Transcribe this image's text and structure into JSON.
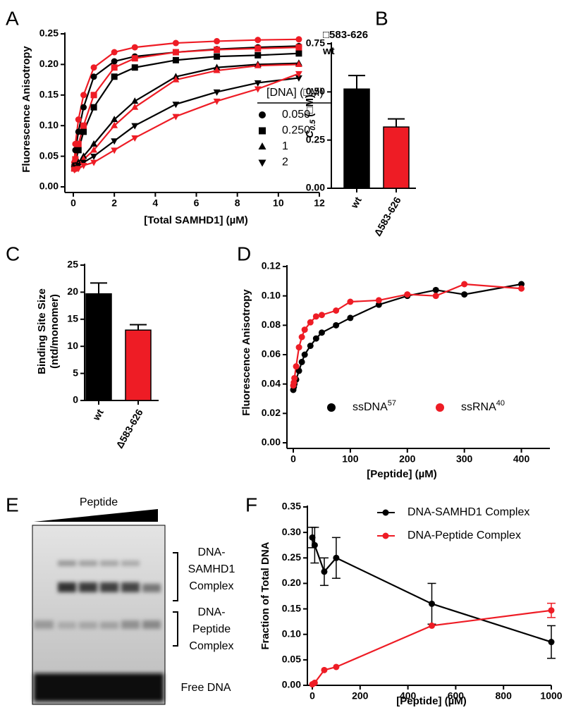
{
  "chart_data": [
    {
      "type": "line",
      "label": "A",
      "ylabel": "Fluorescence Anisotropy",
      "xlabel": "[Total SAMHD1] (µM)",
      "xlim": [
        0,
        12
      ],
      "xticks": [
        0,
        2,
        4,
        6,
        8,
        10,
        12
      ],
      "ylim": [
        0,
        0.25
      ],
      "yticks": [
        {
          "value": 0,
          "label": "0.00"
        },
        0.05,
        {
          "value": 0.1,
          "label": "0.10"
        },
        0.15,
        {
          "value": 0.2,
          "label": "0.20"
        },
        0.25
      ],
      "x": [
        0.05,
        0.1,
        0.25,
        0.5,
        1,
        2,
        3,
        5,
        7,
        9,
        11
      ],
      "series": [
        {
          "color": "#000000",
          "marker": "circle",
          "values": [
            0.035,
            0.06,
            0.09,
            0.13,
            0.18,
            0.205,
            0.213,
            0.22,
            0.225,
            0.228,
            0.23
          ]
        },
        {
          "color": "#ee1c25",
          "marker": "circle",
          "values": [
            0.04,
            0.07,
            0.11,
            0.15,
            0.195,
            0.22,
            0.228,
            0.235,
            0.238,
            0.24,
            0.241
          ]
        },
        {
          "color": "#000000",
          "marker": "square",
          "values": [
            0.03,
            0.04,
            0.06,
            0.09,
            0.13,
            0.18,
            0.195,
            0.207,
            0.213,
            0.215,
            0.218
          ]
        },
        {
          "color": "#ee1c25",
          "marker": "square",
          "values": [
            0.03,
            0.045,
            0.07,
            0.1,
            0.15,
            0.195,
            0.21,
            0.22,
            0.224,
            0.226,
            0.228
          ]
        },
        {
          "color": "#000000",
          "marker": "triangle",
          "values": [
            0.03,
            0.035,
            0.04,
            0.05,
            0.07,
            0.11,
            0.14,
            0.18,
            0.195,
            0.2,
            0.202
          ]
        },
        {
          "color": "#ee1c25",
          "marker": "triangle",
          "values": [
            0.03,
            0.033,
            0.035,
            0.045,
            0.06,
            0.1,
            0.13,
            0.175,
            0.19,
            0.198,
            0.2
          ]
        },
        {
          "color": "#000000",
          "marker": "triangle-down",
          "values": [
            0.03,
            0.032,
            0.035,
            0.04,
            0.05,
            0.075,
            0.1,
            0.135,
            0.155,
            0.17,
            0.178
          ]
        },
        {
          "color": "#ee1c25",
          "marker": "triangle-down",
          "values": [
            0.028,
            0.029,
            0.03,
            0.035,
            0.04,
            0.06,
            0.08,
            0.115,
            0.14,
            0.16,
            0.185
          ]
        }
      ],
      "line_labels": [
        {
          "text": "□583-626",
          "color": "#ee1c25"
        },
        {
          "text": "wt",
          "color": "#000000"
        }
      ],
      "legend_title": "[DNA] (□M)",
      "legend": [
        {
          "label": "0.050",
          "marker": "circle"
        },
        {
          "label": "0.250",
          "marker": "square"
        },
        {
          "label": "1",
          "marker": "triangle"
        },
        {
          "label": "2",
          "marker": "triangle-down"
        }
      ]
    },
    {
      "type": "bar",
      "label": "B",
      "ylabel_italic": "C",
      "ylabel_sub": "0.5",
      "ylabel_unit": "(□M)",
      "categories": [
        "wt",
        "Δ583-626"
      ],
      "values": [
        0.515,
        0.318
      ],
      "errors": [
        0.07,
        0.042
      ],
      "colors": [
        "#000000",
        "#ee1c25"
      ],
      "ylim": [
        0,
        0.75
      ],
      "yticks": [
        {
          "value": 0,
          "label": "0.00"
        },
        0.25,
        {
          "value": 0.5,
          "label": "0.50"
        },
        0.75
      ]
    },
    {
      "type": "bar",
      "label": "C",
      "ylabel": [
        "Binding Site Size",
        "(ntd/monomer)"
      ],
      "categories": [
        "wt",
        "Δ583-626"
      ],
      "values": [
        19.7,
        13.0
      ],
      "errors": [
        2.0,
        1.0
      ],
      "colors": [
        "#000000",
        "#ee1c25"
      ],
      "ylim": [
        0,
        25
      ],
      "yticks": [
        0,
        5,
        10,
        15,
        20,
        25
      ]
    },
    {
      "type": "line",
      "label": "D",
      "ylabel": "Fluorescence Anisotropy",
      "xlabel": "[Peptide] (µM)",
      "xlim": [
        0,
        450
      ],
      "xticks": [
        0,
        100,
        200,
        300,
        400
      ],
      "ylim": [
        0,
        0.12
      ],
      "yticks": [
        {
          "value": 0,
          "label": "0.00"
        },
        0.02,
        0.04,
        0.06,
        0.08,
        {
          "value": 0.1,
          "label": "0.10"
        },
        0.12
      ],
      "x": [
        0,
        1,
        2,
        5,
        10,
        15,
        20,
        30,
        40,
        50,
        75,
        100,
        150,
        200,
        250,
        300,
        400
      ],
      "series": [
        {
          "name": "ssDNA",
          "name_sup": "57",
          "color": "#000000",
          "marker": "circle",
          "values": [
            0.036,
            0.038,
            0.04,
            0.043,
            0.049,
            0.055,
            0.06,
            0.066,
            0.071,
            0.075,
            0.08,
            0.085,
            0.094,
            0.1,
            0.104,
            0.101,
            0.108
          ]
        },
        {
          "name": "ssRNA",
          "name_sup": "40",
          "color": "#ee1c25",
          "marker": "circle",
          "values": [
            0.039,
            0.041,
            0.044,
            0.052,
            0.065,
            0.072,
            0.077,
            0.082,
            0.086,
            0.087,
            0.09,
            0.096,
            0.097,
            0.101,
            0.1,
            0.108,
            0.105
          ]
        }
      ]
    },
    {
      "type": "errorline",
      "label": "F",
      "ylabel": "Fraction of Total DNA",
      "xlabel": "[Peptide] (µM)",
      "xlim": [
        0,
        1000
      ],
      "xticks": [
        0,
        200,
        400,
        600,
        800,
        1000
      ],
      "ylim": [
        0,
        0.35
      ],
      "yticks": [
        {
          "value": 0,
          "label": "0.00"
        },
        0.05,
        {
          "value": 0.1,
          "label": "0.10"
        },
        0.15,
        {
          "value": 0.2,
          "label": "0.20"
        },
        0.25,
        {
          "value": 0.3,
          "label": "0.30"
        },
        0.35
      ],
      "x": [
        0,
        10,
        50,
        100,
        500,
        1000
      ],
      "series": [
        {
          "name": "DNA-SAMHD1 Complex",
          "color": "#000000",
          "marker": "circle",
          "values": [
            0.29,
            0.275,
            0.223,
            0.25,
            0.16,
            0.085
          ],
          "errors": [
            0.02,
            0.035,
            0.027,
            0.04,
            0.04,
            0.032
          ]
        },
        {
          "name": "DNA-Peptide Complex",
          "color": "#ee1c25",
          "marker": "circle",
          "values": [
            0.002,
            0.005,
            0.03,
            0.036,
            0.117,
            0.147
          ],
          "errors": [
            0,
            0,
            0,
            0,
            0,
            0.014
          ]
        }
      ]
    }
  ],
  "gel": {
    "label": "E",
    "title": "Peptide",
    "complex1": [
      "DNA-",
      "SAMHD1",
      "Complex"
    ],
    "complex2": [
      "DNA-",
      "Peptide",
      "Complex"
    ],
    "free": "Free DNA"
  }
}
